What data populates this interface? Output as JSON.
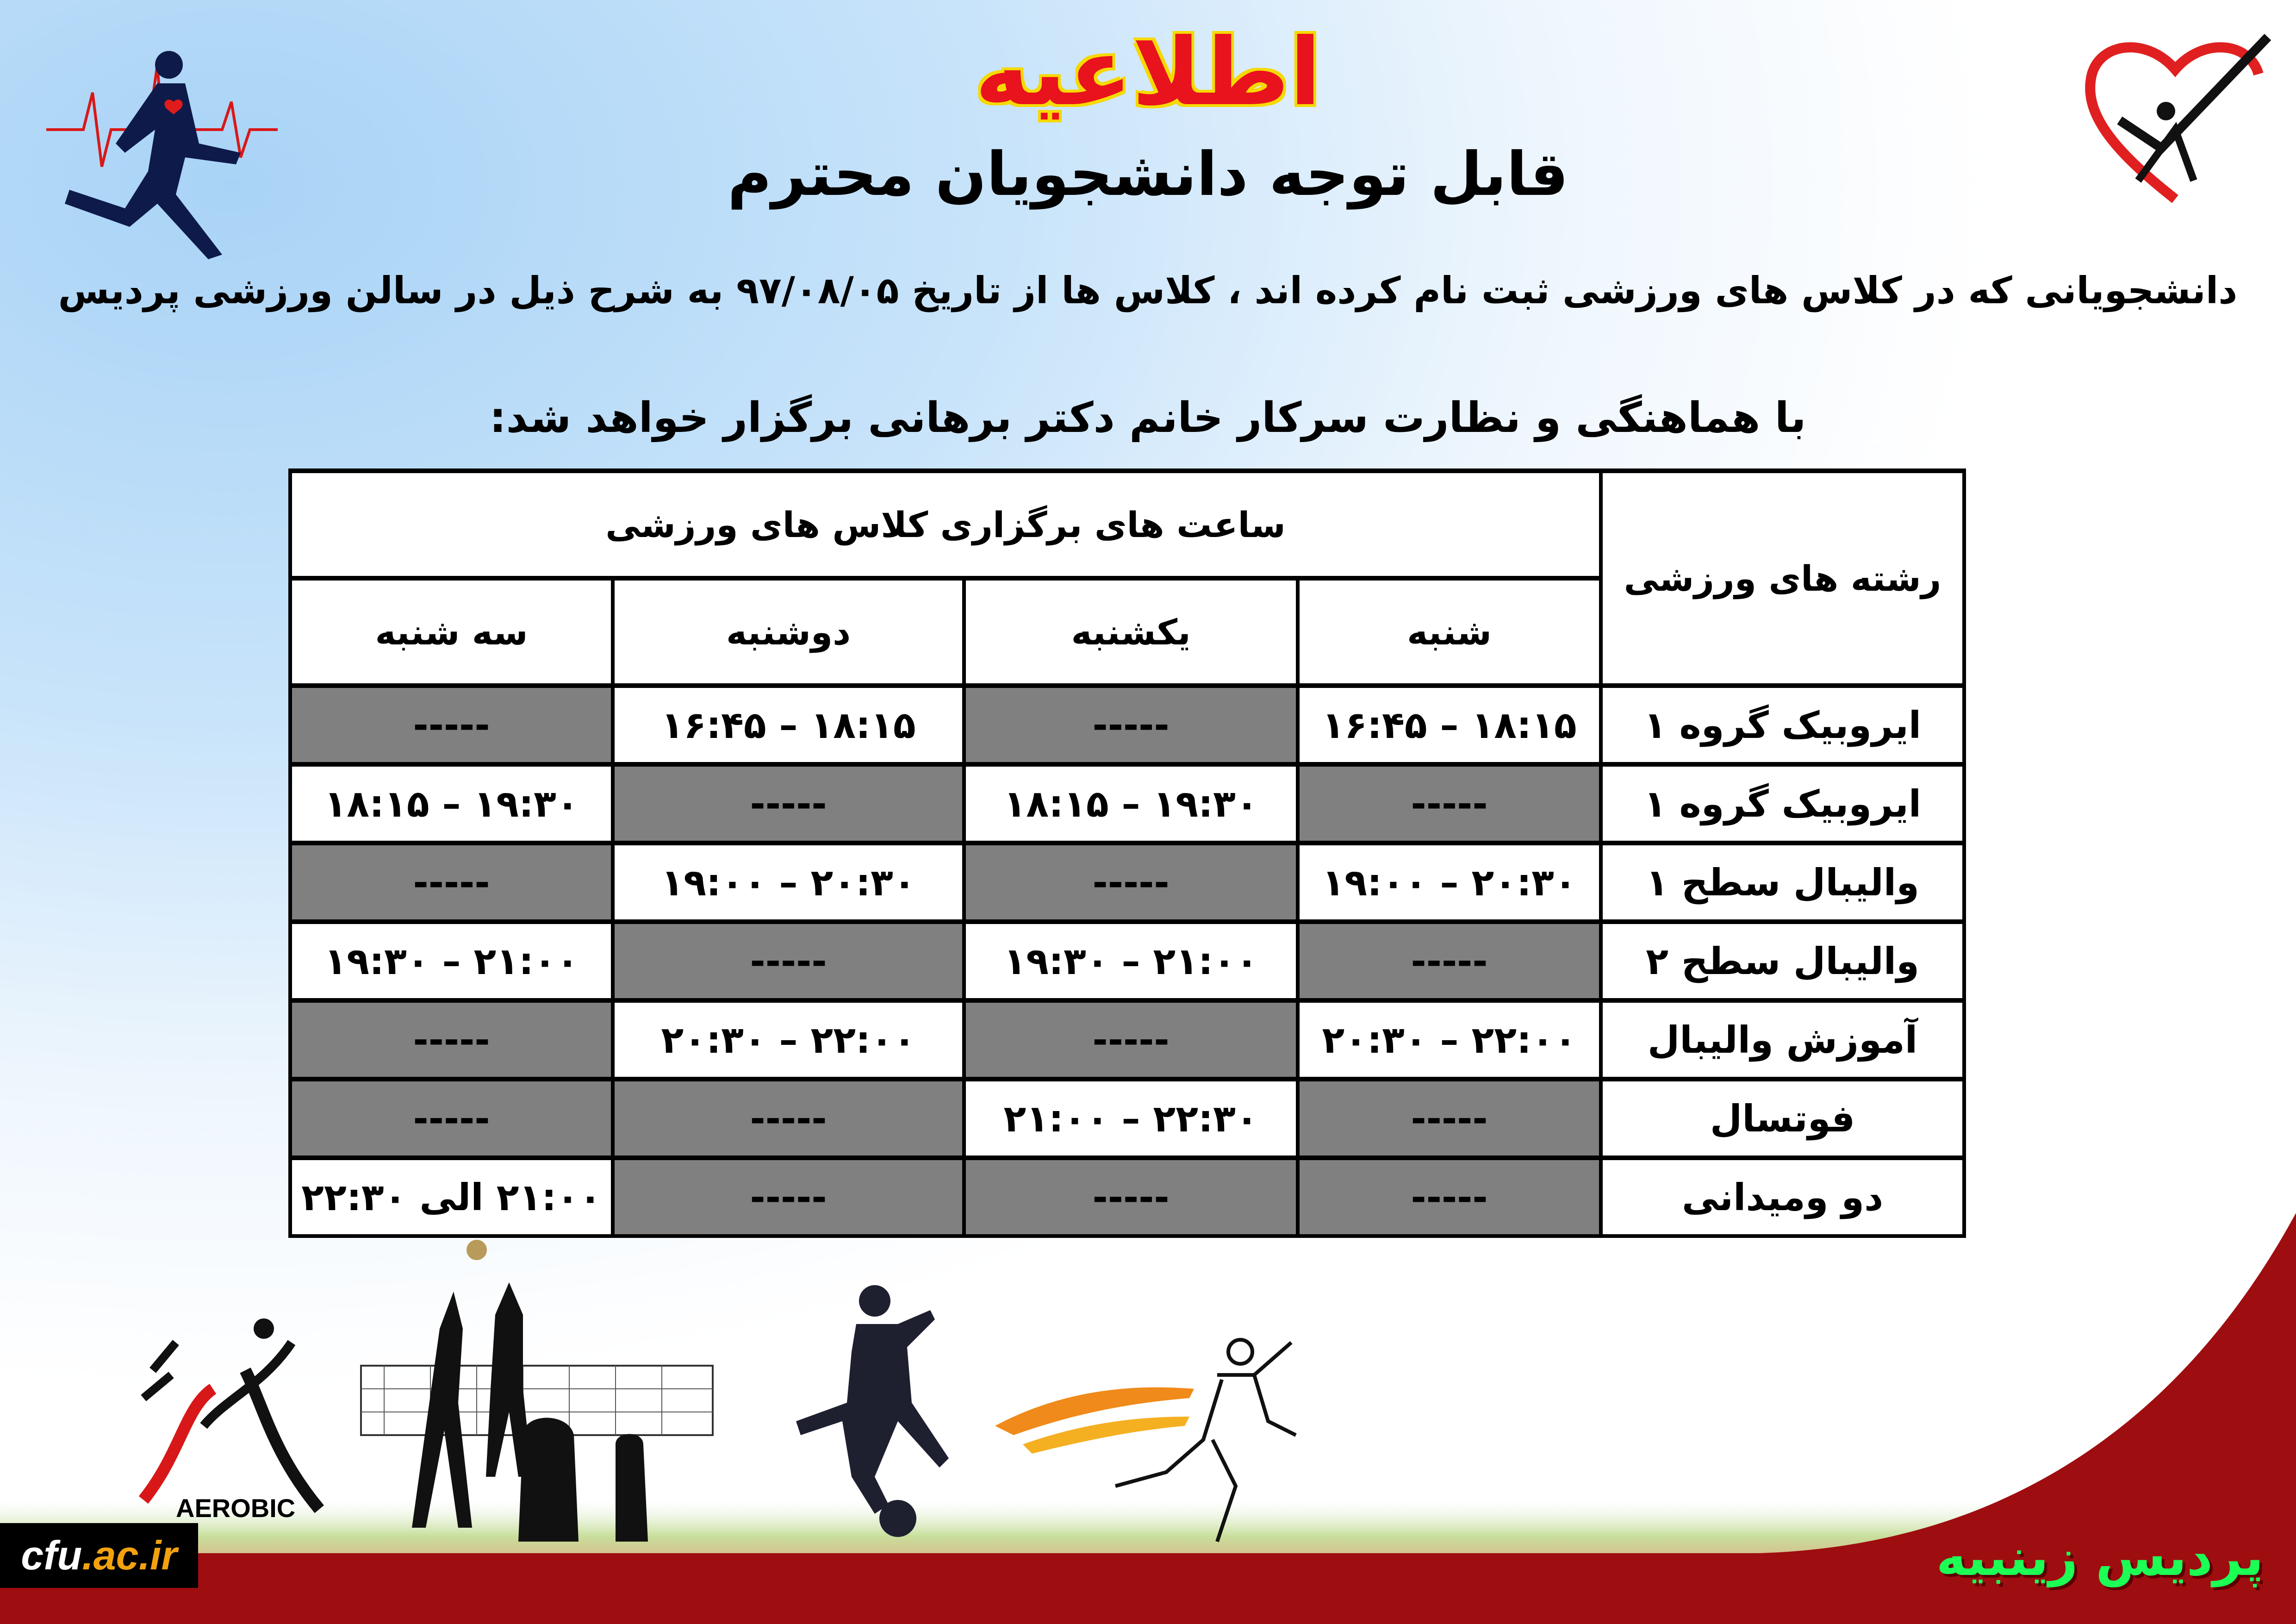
{
  "header": {
    "title": "اطلاعیه",
    "subtitle": "قابل توجه دانشجویان محترم",
    "paragraph_line1": "دانشجویانی که در کلاس های ورزشی ثبت نام کرده اند ، کلاس ها از تاریخ ۹۷/۰۸/۰۵ به شرح ذیل در سالن ورزشی پردیس",
    "paragraph_line2": "با هماهنگی و نظارت سرکار خانم دکتر برهانی برگزار خواهد شد:"
  },
  "table": {
    "sport_header": "رشته های ورزشی",
    "hours_header": "ساعت های برگزاری کلاس های ورزشی",
    "days": [
      "شنبه",
      "یکشنبه",
      "دوشنبه",
      "سه شنبه"
    ],
    "rows": [
      {
        "sport": "ایروبیک گروه ۱",
        "cells": [
          {
            "v": "۱۶:۴۵ – ۱۸:۱۵",
            "on": true
          },
          {
            "v": "-----",
            "on": false
          },
          {
            "v": "۱۶:۴۵ – ۱۸:۱۵",
            "on": true
          },
          {
            "v": "-----",
            "on": false
          }
        ]
      },
      {
        "sport": "ایروبیک گروه ۱",
        "cells": [
          {
            "v": "-----",
            "on": false
          },
          {
            "v": "۱۸:۱۵ – ۱۹:۳۰",
            "on": true
          },
          {
            "v": "-----",
            "on": false
          },
          {
            "v": "۱۸:۱۵ – ۱۹:۳۰",
            "on": true
          }
        ]
      },
      {
        "sport": "والیبال سطح ۱",
        "cells": [
          {
            "v": "۱۹:۰۰ – ۲۰:۳۰",
            "on": true
          },
          {
            "v": "-----",
            "on": false
          },
          {
            "v": "۱۹:۰۰ – ۲۰:۳۰",
            "on": true
          },
          {
            "v": "-----",
            "on": false
          }
        ]
      },
      {
        "sport": "والیبال سطح ۲",
        "cells": [
          {
            "v": "-----",
            "on": false
          },
          {
            "v": "۱۹:۳۰ – ۲۱:۰۰",
            "on": true
          },
          {
            "v": "-----",
            "on": false
          },
          {
            "v": "۱۹:۳۰ – ۲۱:۰۰",
            "on": true
          }
        ]
      },
      {
        "sport": "آموزش والیبال",
        "cells": [
          {
            "v": "۲۰:۳۰ – ۲۲:۰۰",
            "on": true
          },
          {
            "v": "-----",
            "on": false
          },
          {
            "v": "۲۰:۳۰ – ۲۲:۰۰",
            "on": true
          },
          {
            "v": "-----",
            "on": false
          }
        ]
      },
      {
        "sport": "فوتسال",
        "cells": [
          {
            "v": "-----",
            "on": false
          },
          {
            "v": "۲۱:۰۰ – ۲۲:۳۰",
            "on": true
          },
          {
            "v": "-----",
            "on": false
          },
          {
            "v": "-----",
            "on": false
          }
        ]
      },
      {
        "sport": "دو ومیدانی",
        "cells": [
          {
            "v": "-----",
            "on": false
          },
          {
            "v": "-----",
            "on": false
          },
          {
            "v": "-----",
            "on": false
          },
          {
            "v": "۲۱:۰۰ الی ۲۲:۳۰",
            "on": true,
            "rtl": true
          }
        ]
      }
    ]
  },
  "footer": {
    "site_name": "cfu",
    "site_domain": ".ac.ir",
    "campus": "پردیس زینبیه",
    "aerobic_label": "AEROBIC"
  },
  "colors": {
    "title_red": "#e8131c",
    "title_outline": "#f5d800",
    "band_red": "#9e0d10",
    "campus_green": "#1cff55",
    "empty_cell_gray": "#808080"
  },
  "icons": [
    "heartbeat-runner-icon",
    "heart-check-logo-icon",
    "aerobic-figure-icon",
    "volleyball-players-icon",
    "soccer-player-icon",
    "sprinter-icon"
  ]
}
